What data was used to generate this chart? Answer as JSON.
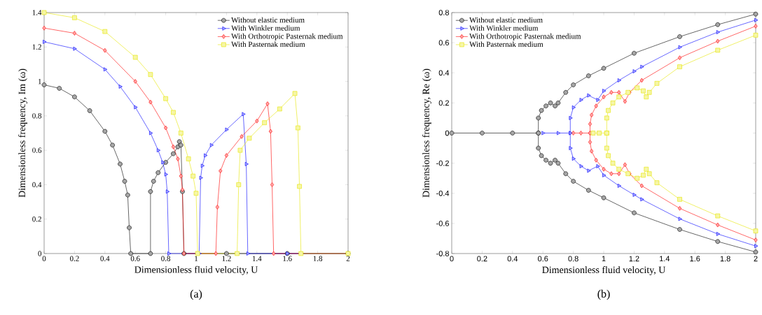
{
  "chart_data": [
    {
      "type": "line",
      "xlabel": "Dimensionless fluid velocity, U",
      "ylabel": "Dimensionless frequency, Im (ω)",
      "annotations": [
        "(a)"
      ],
      "legend": "top right",
      "grid": false,
      "xlim": [
        0,
        2
      ],
      "ylim": [
        0,
        1.4
      ],
      "xticks": [
        0,
        0.2,
        0.4,
        0.6,
        0.8,
        1,
        1.2,
        1.4,
        1.6,
        1.8,
        2
      ],
      "yticks": [
        0,
        0.2,
        0.4,
        0.6,
        0.8,
        1,
        1.2,
        1.4
      ],
      "series": [
        {
          "name": "Without elastic medium",
          "color": "#000000",
          "marker": "circle",
          "x": [
            0,
            0.1,
            0.2,
            0.3,
            0.4,
            0.45,
            0.5,
            0.53,
            0.55,
            0.56,
            0.57,
            0.7,
            0.7,
            0.72,
            0.75,
            0.8,
            0.85,
            0.88,
            0.89,
            0.9,
            0.91,
            0.92,
            1.2,
            1.6,
            2
          ],
          "values": [
            0.98,
            0.96,
            0.91,
            0.83,
            0.71,
            0.63,
            0.52,
            0.42,
            0.34,
            0.15,
            0,
            0,
            0.36,
            0.42,
            0.47,
            0.53,
            0.58,
            0.62,
            0.65,
            0.63,
            0.36,
            0,
            0,
            0,
            0
          ]
        },
        {
          "name": "With Winkler medium",
          "color": "#0000ff",
          "marker": "triangle",
          "x": [
            0,
            0.2,
            0.4,
            0.5,
            0.6,
            0.7,
            0.75,
            0.78,
            0.8,
            0.81,
            0.82,
            1.02,
            1.03,
            1.04,
            1.06,
            1.1,
            1.2,
            1.31,
            1.33,
            1.34,
            1.6,
            2
          ],
          "values": [
            1.23,
            1.19,
            1.07,
            0.97,
            0.85,
            0.7,
            0.6,
            0.53,
            0.46,
            0.36,
            0,
            0,
            0.44,
            0.51,
            0.57,
            0.63,
            0.72,
            0.81,
            0.52,
            0,
            0,
            0
          ]
        },
        {
          "name": "With Orthotropic Pasternak medium",
          "color": "#ff0000",
          "marker": "diamond",
          "x": [
            0,
            0.2,
            0.4,
            0.6,
            0.7,
            0.8,
            0.85,
            0.88,
            0.9,
            0.91,
            0.92,
            1.13,
            1.14,
            1.16,
            1.2,
            1.3,
            1.4,
            1.47,
            1.49,
            1.5,
            1.51,
            2
          ],
          "values": [
            1.31,
            1.28,
            1.18,
            1.0,
            0.88,
            0.73,
            0.62,
            0.55,
            0.45,
            0.37,
            0,
            0,
            0.27,
            0.48,
            0.57,
            0.68,
            0.77,
            0.87,
            0.71,
            0.4,
            0,
            0
          ]
        },
        {
          "name": "With Pasternak medium",
          "color": "#e6e600",
          "marker": "square",
          "x": [
            0,
            0.2,
            0.4,
            0.6,
            0.7,
            0.8,
            0.85,
            0.9,
            0.95,
            0.98,
            1.0,
            1.01,
            1.27,
            1.28,
            1.29,
            1.35,
            1.45,
            1.55,
            1.65,
            1.67,
            1.68,
            1.69,
            2
          ],
          "values": [
            1.4,
            1.37,
            1.29,
            1.14,
            1.04,
            0.9,
            0.82,
            0.7,
            0.55,
            0.45,
            0.35,
            0,
            0,
            0.4,
            0.6,
            0.67,
            0.76,
            0.84,
            0.93,
            0.73,
            0.39,
            0,
            0
          ]
        }
      ]
    },
    {
      "type": "line",
      "xlabel": "Dimensionless fluid velocity, U",
      "ylabel": "Dimensionless frequency, Re (ω)",
      "annotations": [
        "(b)"
      ],
      "legend": "top left",
      "grid": false,
      "xlim": [
        0,
        2
      ],
      "ylim": [
        -0.8,
        0.8
      ],
      "xticks": [
        0,
        0.2,
        0.4,
        0.6,
        0.8,
        1,
        1.2,
        1.4,
        1.6,
        1.8,
        2
      ],
      "yticks": [
        -0.8,
        -0.6,
        -0.4,
        -0.2,
        0,
        0.2,
        0.4,
        0.6,
        0.8
      ],
      "series": [
        {
          "name": "Without elastic medium",
          "color": "#000000",
          "marker": "circle",
          "x": [
            0,
            0.2,
            0.4,
            0.57,
            0.57,
            0.59,
            0.62,
            0.65,
            0.68,
            0.7,
            0.75,
            0.8,
            0.9,
            1.0,
            1.2,
            1.5,
            1.75,
            2
          ],
          "values": [
            0,
            0,
            0,
            0,
            0.1,
            0.15,
            0.18,
            0.2,
            0.18,
            0.2,
            0.27,
            0.32,
            0.38,
            0.43,
            0.53,
            0.64,
            0.72,
            0.79
          ]
        },
        {
          "color": "#000000",
          "marker": "circle",
          "x": [
            0.57,
            0.57,
            0.59,
            0.62,
            0.65,
            0.68,
            0.7,
            0.75,
            0.8,
            0.9,
            1.0,
            1.2,
            1.5,
            1.75,
            2
          ],
          "values": [
            0,
            -0.1,
            -0.15,
            -0.18,
            -0.2,
            -0.18,
            -0.2,
            -0.27,
            -0.32,
            -0.38,
            -0.43,
            -0.53,
            -0.64,
            -0.72,
            -0.79
          ]
        },
        {
          "name": "With Winkler medium",
          "color": "#0000ff",
          "marker": "triangle",
          "x": [
            0.6,
            0.7,
            0.78,
            0.78,
            0.8,
            0.85,
            0.9,
            0.96,
            1.0,
            1.1,
            1.2,
            1.25,
            1.5,
            1.75,
            2
          ],
          "values": [
            0,
            0,
            0,
            0.1,
            0.17,
            0.22,
            0.25,
            0.22,
            0.28,
            0.35,
            0.41,
            0.44,
            0.57,
            0.67,
            0.75
          ]
        },
        {
          "color": "#0000ff",
          "marker": "triangle",
          "x": [
            0.78,
            0.78,
            0.8,
            0.85,
            0.9,
            0.96,
            1.0,
            1.1,
            1.2,
            1.25,
            1.5,
            1.75,
            2
          ],
          "values": [
            0,
            -0.1,
            -0.17,
            -0.22,
            -0.25,
            -0.22,
            -0.28,
            -0.35,
            -0.41,
            -0.44,
            -0.57,
            -0.67,
            -0.75
          ]
        },
        {
          "name": "With Orthotropic Pasternak medium",
          "color": "#ff0000",
          "marker": "diamond",
          "x": [
            0.8,
            0.85,
            0.91,
            0.91,
            0.92,
            0.95,
            1.0,
            1.05,
            1.1,
            1.14,
            1.17,
            1.25,
            1.5,
            1.75,
            2
          ],
          "values": [
            0,
            0,
            0,
            0.06,
            0.12,
            0.18,
            0.24,
            0.27,
            0.27,
            0.21,
            0.27,
            0.35,
            0.5,
            0.61,
            0.71
          ]
        },
        {
          "color": "#ff0000",
          "marker": "diamond",
          "x": [
            0.91,
            0.91,
            0.92,
            0.95,
            1.0,
            1.05,
            1.1,
            1.14,
            1.17,
            1.25,
            1.5,
            1.75,
            2
          ],
          "values": [
            0,
            -0.06,
            -0.12,
            -0.18,
            -0.24,
            -0.27,
            -0.27,
            -0.21,
            -0.27,
            -0.35,
            -0.5,
            -0.61,
            -0.71
          ]
        },
        {
          "name": "With Pasternak medium",
          "color": "#e6e600",
          "marker": "square",
          "x": [
            0.93,
            0.97,
            1.02,
            1.02,
            1.03,
            1.06,
            1.1,
            1.16,
            1.22,
            1.26,
            1.28,
            1.3,
            1.35,
            1.5,
            1.75,
            2
          ],
          "values": [
            0,
            0,
            0,
            0.1,
            0.15,
            0.2,
            0.24,
            0.27,
            0.3,
            0.28,
            0.24,
            0.27,
            0.33,
            0.44,
            0.55,
            0.65
          ]
        },
        {
          "color": "#e6e600",
          "marker": "square",
          "x": [
            1.02,
            1.02,
            1.03,
            1.06,
            1.1,
            1.16,
            1.22,
            1.26,
            1.28,
            1.3,
            1.35,
            1.5,
            1.75,
            2
          ],
          "values": [
            0,
            -0.1,
            -0.15,
            -0.2,
            -0.24,
            -0.27,
            -0.3,
            -0.28,
            -0.24,
            -0.27,
            -0.33,
            -0.44,
            -0.55,
            -0.65
          ]
        }
      ]
    }
  ]
}
